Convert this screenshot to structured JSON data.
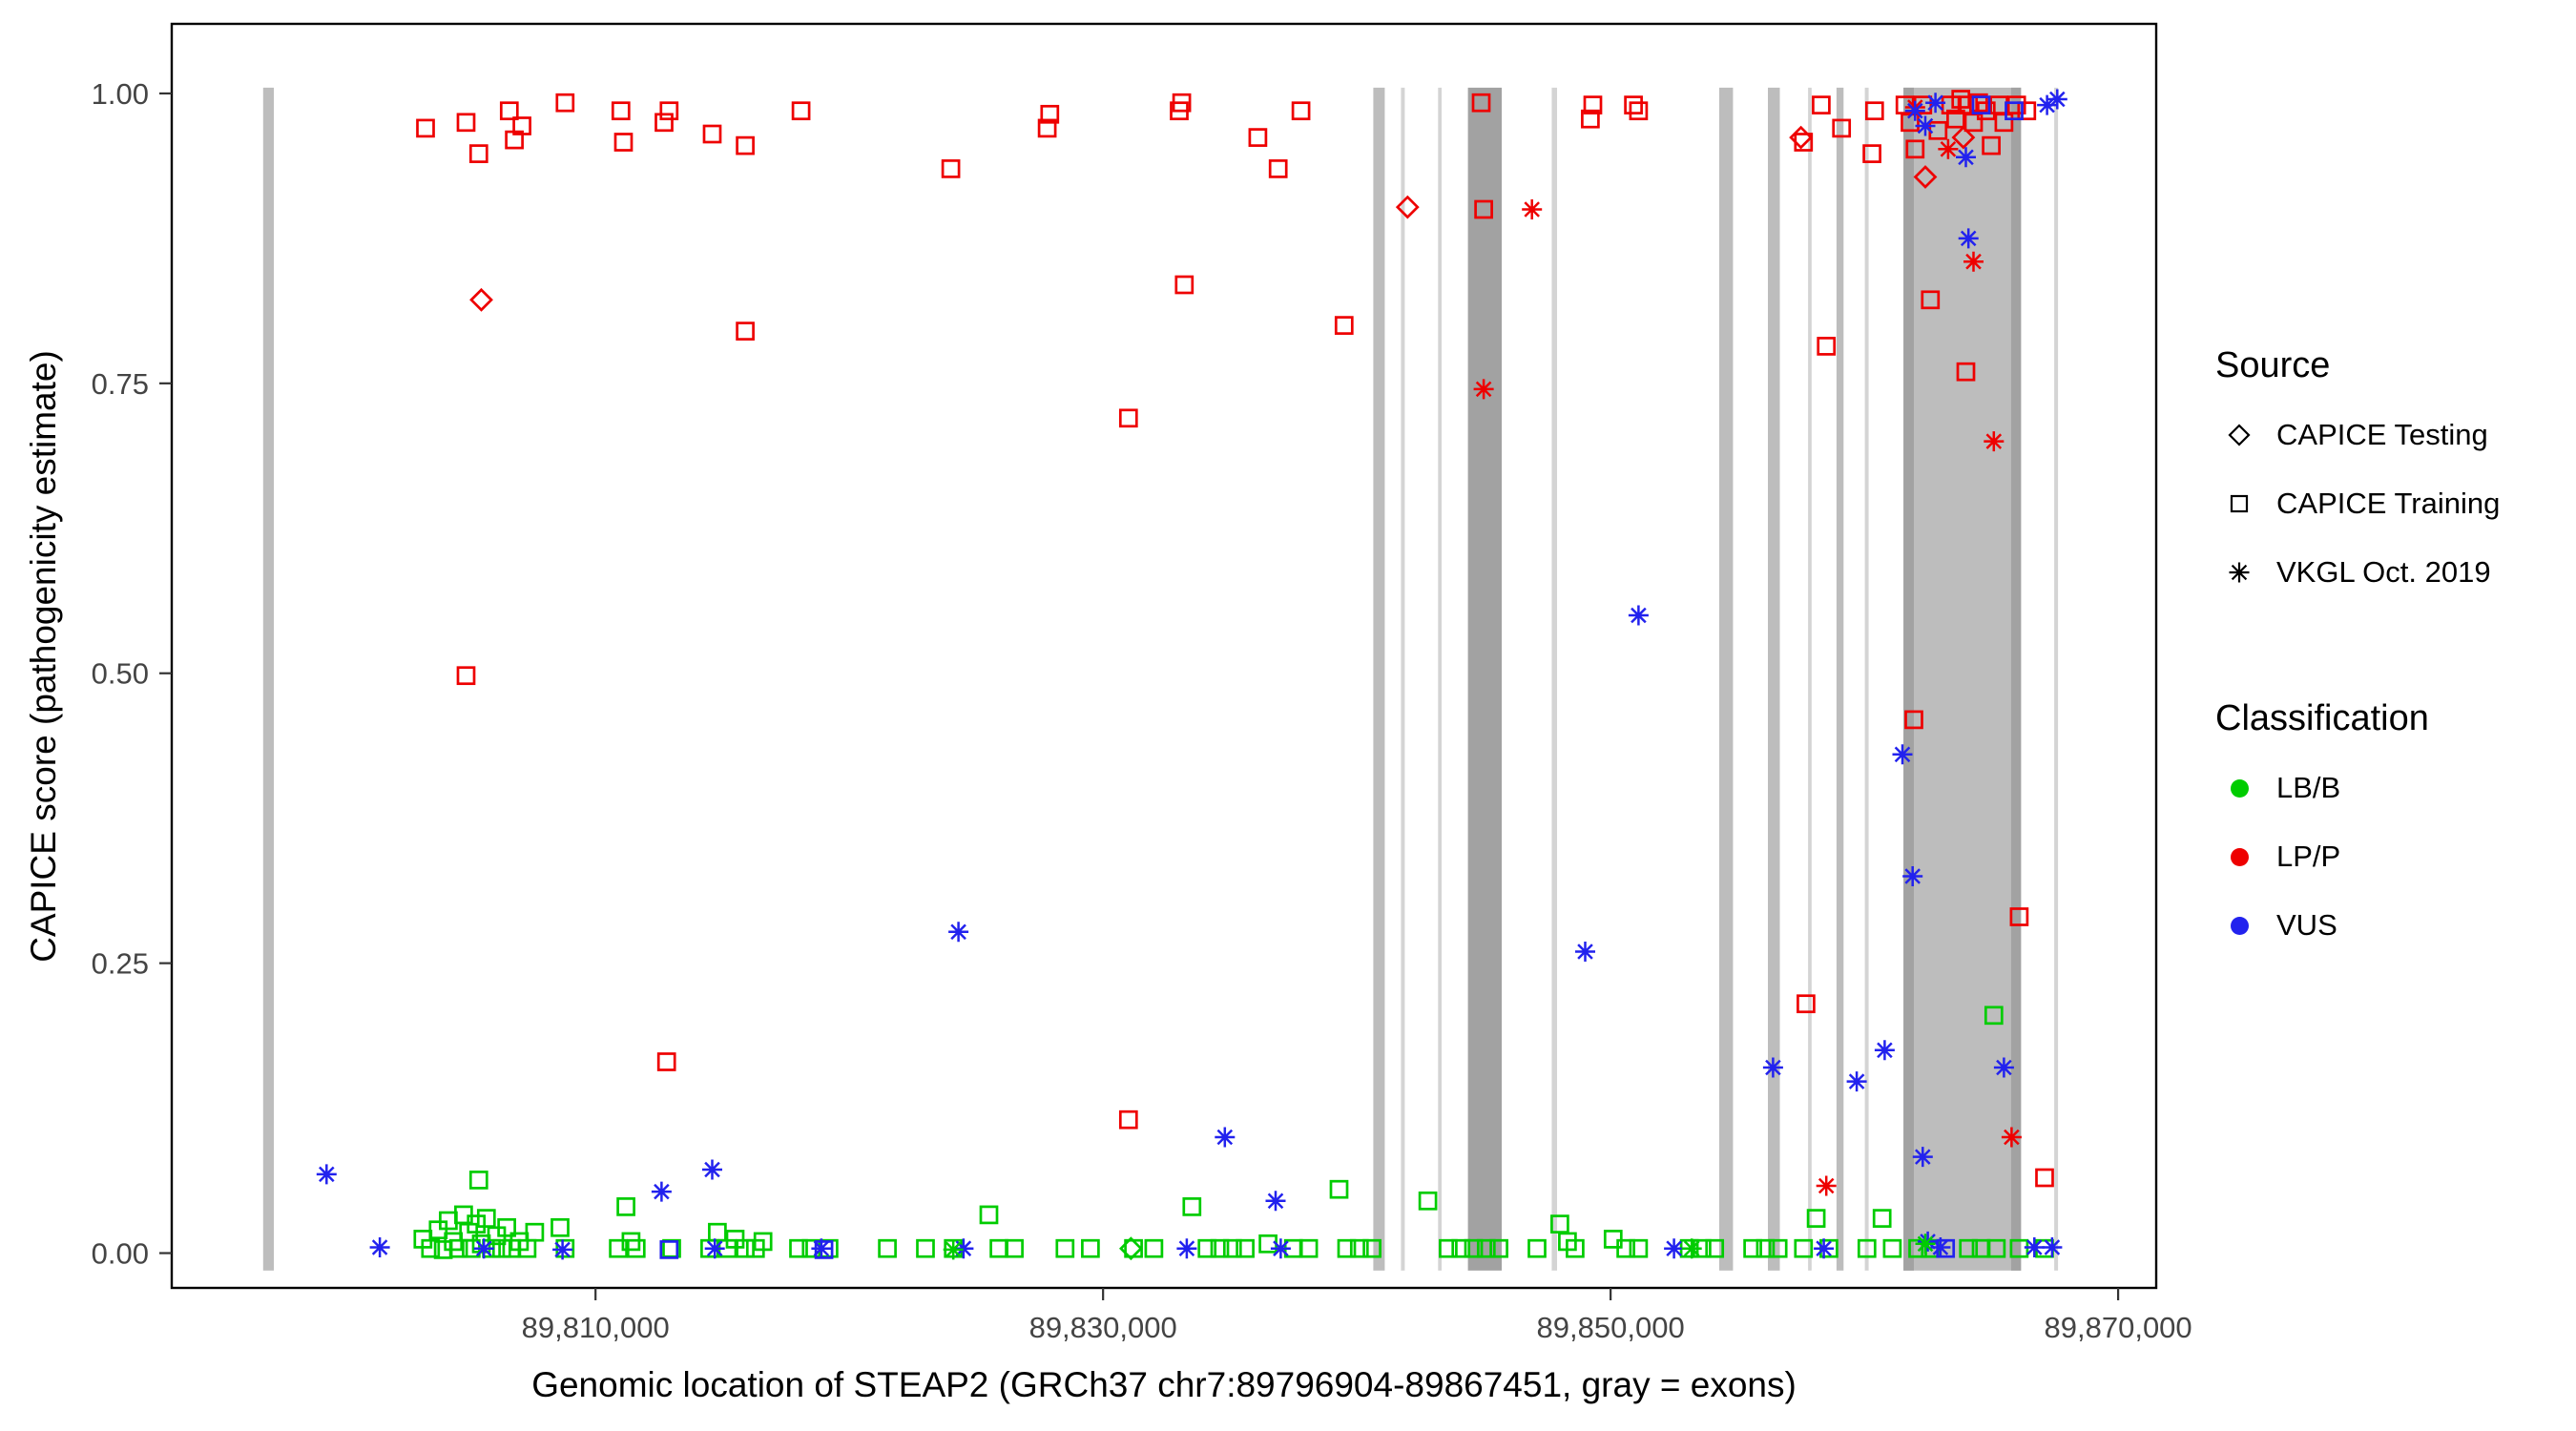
{
  "legend": {
    "source": {
      "title": "Source",
      "items": [
        {
          "label": "CAPICE Testing",
          "shape": "diamond"
        },
        {
          "label": "CAPICE Training",
          "shape": "square"
        },
        {
          "label": "VKGL Oct. 2019",
          "shape": "asterisk"
        }
      ]
    },
    "classification": {
      "title": "Classification",
      "items": [
        {
          "label": "LB/B",
          "color": "#00CC00"
        },
        {
          "label": "LP/P",
          "color": "#EE0000"
        },
        {
          "label": "VUS",
          "color": "#2222EE"
        }
      ]
    }
  },
  "chart_data": {
    "type": "scatter",
    "title": "",
    "xlabel": "Genomic location of STEAP2 (GRCh37 chr7:89796904-89867451, gray = exons)",
    "ylabel": "CAPICE score (pathogenicity estimate)",
    "xlim": [
      89793300,
      89871500
    ],
    "ylim": [
      -0.03,
      1.06
    ],
    "grid": "off",
    "legend_position": "right",
    "x_ticks": [
      {
        "value": 89810000,
        "label": "89,810,000"
      },
      {
        "value": 89830000,
        "label": "89,830,000"
      },
      {
        "value": 89850000,
        "label": "89,850,000"
      },
      {
        "value": 89870000,
        "label": "89,870,000"
      }
    ],
    "y_ticks": [
      {
        "value": 0.0,
        "label": "0.00"
      },
      {
        "value": 0.25,
        "label": "0.25"
      },
      {
        "value": 0.5,
        "label": "0.50"
      },
      {
        "value": 0.75,
        "label": "0.75"
      },
      {
        "value": 1.0,
        "label": "1.00"
      }
    ],
    "exon_shades": {
      "light": "#d4d4d4",
      "mid": "#bdbdbd",
      "dark": "#a2a2a2"
    },
    "exons": [
      {
        "start": 89796900,
        "end": 89797320,
        "shade": "mid"
      },
      {
        "start": 89840650,
        "end": 89841100,
        "shade": "mid"
      },
      {
        "start": 89841740,
        "end": 89841890,
        "shade": "light"
      },
      {
        "start": 89843200,
        "end": 89843340,
        "shade": "light"
      },
      {
        "start": 89844380,
        "end": 89845710,
        "shade": "dark"
      },
      {
        "start": 89847680,
        "end": 89847890,
        "shade": "light"
      },
      {
        "start": 89854280,
        "end": 89854820,
        "shade": "mid"
      },
      {
        "start": 89856200,
        "end": 89856670,
        "shade": "mid"
      },
      {
        "start": 89857780,
        "end": 89857920,
        "shade": "light"
      },
      {
        "start": 89858900,
        "end": 89859180,
        "shade": "mid"
      },
      {
        "start": 89860020,
        "end": 89860170,
        "shade": "light"
      },
      {
        "start": 89861540,
        "end": 89866170,
        "shade": "mid"
      },
      {
        "start": 89861540,
        "end": 89861950,
        "shade": "dark"
      },
      {
        "start": 89865780,
        "end": 89866170,
        "shade": "dark"
      },
      {
        "start": 89867480,
        "end": 89867630,
        "shade": "light"
      }
    ],
    "series": [
      {
        "source": "CAPICE Training",
        "classification": "LP/P",
        "shape": "square",
        "color": "#EE0000",
        "points": [
          [
            89803300,
            0.97
          ],
          [
            89804900,
            0.975
          ],
          [
            89804900,
            0.498
          ],
          [
            89805400,
            0.948
          ],
          [
            89806600,
            0.985
          ],
          [
            89806800,
            0.96
          ],
          [
            89807100,
            0.972
          ],
          [
            89808800,
            0.992
          ],
          [
            89811000,
            0.985
          ],
          [
            89811100,
            0.958
          ],
          [
            89812700,
            0.975
          ],
          [
            89812800,
            0.165
          ],
          [
            89812900,
            0.985
          ],
          [
            89814600,
            0.965
          ],
          [
            89815900,
            0.955
          ],
          [
            89815900,
            0.795
          ],
          [
            89818100,
            0.985
          ],
          [
            89824000,
            0.935
          ],
          [
            89827800,
            0.97
          ],
          [
            89827900,
            0.982
          ],
          [
            89831000,
            0.72
          ],
          [
            89831000,
            0.115
          ],
          [
            89833000,
            0.985
          ],
          [
            89833100,
            0.992
          ],
          [
            89833200,
            0.835
          ],
          [
            89836100,
            0.962
          ],
          [
            89836900,
            0.935
          ],
          [
            89837800,
            0.985
          ],
          [
            89839500,
            0.8
          ],
          [
            89844900,
            0.992
          ],
          [
            89845000,
            0.9
          ],
          [
            89849200,
            0.978
          ],
          [
            89849300,
            0.99
          ],
          [
            89850900,
            0.99
          ],
          [
            89851100,
            0.985
          ],
          [
            89857600,
            0.958
          ],
          [
            89857700,
            0.215
          ],
          [
            89858300,
            0.99
          ],
          [
            89858500,
            0.782
          ],
          [
            89859100,
            0.97
          ],
          [
            89860300,
            0.948
          ],
          [
            89860400,
            0.985
          ],
          [
            89861600,
            0.99
          ],
          [
            89861800,
            0.975
          ],
          [
            89861950,
            0.46
          ],
          [
            89862000,
            0.952
          ],
          [
            89862300,
            0.99
          ],
          [
            89862600,
            0.822
          ],
          [
            89862900,
            0.968
          ],
          [
            89863400,
            0.99
          ],
          [
            89863600,
            0.978
          ],
          [
            89863800,
            0.995
          ],
          [
            89864000,
            0.76
          ],
          [
            89864100,
            0.99
          ],
          [
            89864300,
            0.975
          ],
          [
            89864500,
            0.992
          ],
          [
            89864800,
            0.985
          ],
          [
            89865000,
            0.955
          ],
          [
            89865300,
            0.99
          ],
          [
            89865500,
            0.975
          ],
          [
            89866000,
            0.99
          ],
          [
            89866100,
            0.29
          ],
          [
            89866400,
            0.985
          ],
          [
            89867100,
            0.065
          ]
        ]
      },
      {
        "source": "CAPICE Training",
        "classification": "LB/B",
        "shape": "square",
        "color": "#00CC00",
        "points": [
          [
            89803200,
            0.012
          ],
          [
            89803500,
            0.004
          ],
          [
            89803800,
            0.02
          ],
          [
            89804000,
            0.003
          ],
          [
            89804200,
            0.028
          ],
          [
            89804400,
            0.01
          ],
          [
            89804600,
            0.004
          ],
          [
            89804800,
            0.033
          ],
          [
            89805000,
            0.018
          ],
          [
            89805100,
            0.004
          ],
          [
            89805300,
            0.025
          ],
          [
            89805400,
            0.063
          ],
          [
            89805500,
            0.008
          ],
          [
            89805700,
            0.03
          ],
          [
            89805900,
            0.004
          ],
          [
            89806100,
            0.015
          ],
          [
            89806300,
            0.004
          ],
          [
            89806500,
            0.022
          ],
          [
            89806700,
            0.004
          ],
          [
            89807000,
            0.01
          ],
          [
            89807300,
            0.004
          ],
          [
            89807600,
            0.018
          ],
          [
            89808600,
            0.022
          ],
          [
            89808800,
            0.004
          ],
          [
            89810900,
            0.004
          ],
          [
            89811200,
            0.04
          ],
          [
            89811400,
            0.01
          ],
          [
            89811600,
            0.004
          ],
          [
            89813000,
            0.004
          ],
          [
            89814500,
            0.004
          ],
          [
            89814800,
            0.018
          ],
          [
            89815200,
            0.004
          ],
          [
            89815500,
            0.012
          ],
          [
            89815900,
            0.004
          ],
          [
            89816300,
            0.004
          ],
          [
            89816600,
            0.01
          ],
          [
            89818000,
            0.004
          ],
          [
            89818500,
            0.004
          ],
          [
            89819200,
            0.004
          ],
          [
            89821500,
            0.004
          ],
          [
            89823000,
            0.004
          ],
          [
            89824100,
            0.004
          ],
          [
            89825500,
            0.033
          ],
          [
            89825900,
            0.004
          ],
          [
            89826500,
            0.004
          ],
          [
            89828500,
            0.004
          ],
          [
            89829500,
            0.004
          ],
          [
            89831200,
            0.004
          ],
          [
            89832000,
            0.004
          ],
          [
            89833500,
            0.04
          ],
          [
            89834100,
            0.004
          ],
          [
            89834600,
            0.004
          ],
          [
            89835100,
            0.004
          ],
          [
            89835600,
            0.004
          ],
          [
            89836500,
            0.008
          ],
          [
            89837500,
            0.004
          ],
          [
            89838100,
            0.004
          ],
          [
            89839300,
            0.055
          ],
          [
            89839600,
            0.004
          ],
          [
            89840100,
            0.004
          ],
          [
            89840600,
            0.004
          ],
          [
            89842800,
            0.045
          ],
          [
            89843600,
            0.004
          ],
          [
            89844100,
            0.004
          ],
          [
            89844600,
            0.004
          ],
          [
            89845100,
            0.004
          ],
          [
            89845600,
            0.004
          ],
          [
            89847100,
            0.004
          ],
          [
            89848000,
            0.025
          ],
          [
            89848300,
            0.01
          ],
          [
            89848600,
            0.004
          ],
          [
            89850100,
            0.012
          ],
          [
            89850600,
            0.004
          ],
          [
            89851100,
            0.004
          ],
          [
            89853100,
            0.004
          ],
          [
            89853600,
            0.004
          ],
          [
            89854100,
            0.004
          ],
          [
            89855600,
            0.004
          ],
          [
            89856100,
            0.004
          ],
          [
            89856600,
            0.004
          ],
          [
            89857600,
            0.004
          ],
          [
            89858100,
            0.03
          ],
          [
            89858600,
            0.004
          ],
          [
            89860100,
            0.004
          ],
          [
            89860700,
            0.03
          ],
          [
            89861100,
            0.004
          ],
          [
            89862100,
            0.004
          ],
          [
            89862600,
            0.004
          ],
          [
            89864100,
            0.004
          ],
          [
            89864600,
            0.004
          ],
          [
            89865100,
            0.205
          ],
          [
            89865200,
            0.004
          ],
          [
            89866100,
            0.004
          ],
          [
            89867100,
            0.004
          ]
        ]
      },
      {
        "source": "CAPICE Training",
        "classification": "VUS",
        "shape": "square",
        "color": "#2222EE",
        "points": [
          [
            89812900,
            0.003
          ],
          [
            89819000,
            0.003
          ],
          [
            89863200,
            0.004
          ],
          [
            89864600,
            0.99
          ],
          [
            89865900,
            0.985
          ]
        ]
      },
      {
        "source": "CAPICE Testing",
        "classification": "LP/P",
        "shape": "diamond",
        "color": "#EE0000",
        "points": [
          [
            89805500,
            0.822
          ],
          [
            89842000,
            0.902
          ],
          [
            89857500,
            0.962
          ],
          [
            89862400,
            0.928
          ],
          [
            89863900,
            0.962
          ]
        ]
      },
      {
        "source": "CAPICE Testing",
        "classification": "LB/B",
        "shape": "diamond",
        "color": "#00CC00",
        "points": [
          [
            89831100,
            0.004
          ]
        ]
      },
      {
        "source": "VKGL Oct. 2019",
        "classification": "LP/P",
        "shape": "asterisk",
        "color": "#EE0000",
        "points": [
          [
            89845000,
            0.745
          ],
          [
            89846900,
            0.9
          ],
          [
            89858500,
            0.058
          ],
          [
            89862000,
            0.988
          ],
          [
            89863300,
            0.952
          ],
          [
            89864300,
            0.855
          ],
          [
            89865100,
            0.7
          ],
          [
            89865800,
            0.1
          ]
        ]
      },
      {
        "source": "VKGL Oct. 2019",
        "classification": "VUS",
        "shape": "asterisk",
        "color": "#2222EE",
        "points": [
          [
            89799400,
            0.068
          ],
          [
            89801500,
            0.005
          ],
          [
            89805600,
            0.004
          ],
          [
            89808700,
            0.003
          ],
          [
            89812600,
            0.053
          ],
          [
            89814600,
            0.072
          ],
          [
            89814700,
            0.004
          ],
          [
            89818900,
            0.004
          ],
          [
            89824300,
            0.277
          ],
          [
            89824500,
            0.004
          ],
          [
            89833300,
            0.004
          ],
          [
            89834800,
            0.1
          ],
          [
            89836800,
            0.045
          ],
          [
            89837000,
            0.004
          ],
          [
            89849000,
            0.26
          ],
          [
            89851100,
            0.55
          ],
          [
            89852500,
            0.004
          ],
          [
            89856400,
            0.16
          ],
          [
            89858400,
            0.004
          ],
          [
            89859700,
            0.148
          ],
          [
            89860800,
            0.175
          ],
          [
            89861500,
            0.43
          ],
          [
            89861900,
            0.325
          ],
          [
            89862300,
            0.083
          ],
          [
            89862000,
            0.985
          ],
          [
            89862400,
            0.972
          ],
          [
            89862500,
            0.01
          ],
          [
            89862800,
            0.992
          ],
          [
            89863000,
            0.005
          ],
          [
            89864000,
            0.945
          ],
          [
            89864100,
            0.875
          ],
          [
            89865500,
            0.16
          ],
          [
            89866700,
            0.005
          ],
          [
            89867200,
            0.99
          ],
          [
            89867400,
            0.005
          ],
          [
            89867600,
            0.995
          ]
        ]
      },
      {
        "source": "VKGL Oct. 2019",
        "classification": "LB/B",
        "shape": "asterisk",
        "color": "#00CC00",
        "points": [
          [
            89824100,
            0.003
          ],
          [
            89853200,
            0.004
          ],
          [
            89862400,
            0.008
          ]
        ]
      }
    ]
  }
}
